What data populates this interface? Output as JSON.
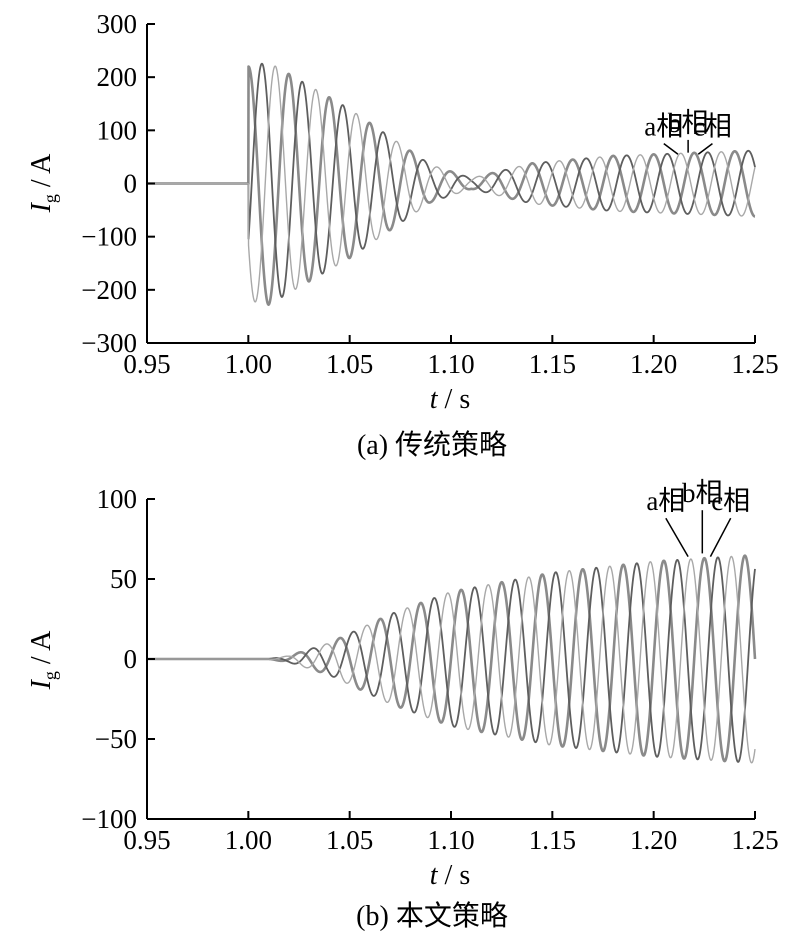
{
  "chart_data": [
    {
      "id": "a",
      "type": "line",
      "caption": "(a)  传统策略",
      "xlabel": {
        "italic": "t",
        "rest": " / s"
      },
      "ylabel": {
        "italic": "I",
        "sub": "g",
        "rest": " / A"
      },
      "xlim": [
        0.95,
        1.25
      ],
      "ylim": [
        -300,
        300
      ],
      "xticks": [
        0.95,
        1.0,
        1.05,
        1.1,
        1.15,
        1.2,
        1.25
      ],
      "xtick_labels": [
        "0.95",
        "1.00",
        "1.05",
        "1.10",
        "1.15",
        "1.20",
        "1.25"
      ],
      "yticks": [
        300,
        200,
        100,
        0,
        -100,
        -200,
        -300
      ],
      "ytick_labels": [
        "300",
        "200",
        "100",
        "0",
        "−100",
        "−200",
        "−300"
      ],
      "grid": false,
      "frequency_hz": 50,
      "series": [
        {
          "name": "a相",
          "color": "#8a8a8a",
          "phase_deg": 90,
          "width": 2.6
        },
        {
          "name": "b相",
          "color": "#5e5e5e",
          "phase_deg": -30,
          "width": 1.8
        },
        {
          "name": "c相",
          "color": "#a8a8a8",
          "phase_deg": -150,
          "width": 1.4
        }
      ],
      "envelope_points": [
        [
          0.95,
          0
        ],
        [
          1.0,
          0
        ],
        [
          1.0,
          220
        ],
        [
          1.01,
          228
        ],
        [
          1.05,
          140
        ],
        [
          1.09,
          35
        ],
        [
          1.11,
          10
        ],
        [
          1.14,
          38
        ],
        [
          1.18,
          52
        ],
        [
          1.25,
          62
        ]
      ],
      "labels": [
        {
          "text": "a相",
          "at": [
            1.205,
            75
          ],
          "to": [
            1.212,
            55
          ]
        },
        {
          "text": "b相",
          "at": [
            1.217,
            82
          ],
          "to": [
            1.217,
            58
          ]
        },
        {
          "text": "c相",
          "at": [
            1.229,
            75
          ],
          "to": [
            1.222,
            55
          ]
        }
      ]
    },
    {
      "id": "b",
      "type": "line",
      "caption": "(b)  本文策略",
      "xlabel": {
        "italic": "t",
        "rest": " / s"
      },
      "ylabel": {
        "italic": "I",
        "sub": "g",
        "rest": " / A"
      },
      "xlim": [
        0.95,
        1.25
      ],
      "ylim": [
        -100,
        100
      ],
      "xticks": [
        0.95,
        1.0,
        1.05,
        1.1,
        1.15,
        1.2,
        1.25
      ],
      "xtick_labels": [
        "0.95",
        "1.00",
        "1.05",
        "1.10",
        "1.15",
        "1.20",
        "1.25"
      ],
      "yticks": [
        100,
        50,
        0,
        -50,
        -100
      ],
      "ytick_labels": [
        "100",
        "50",
        "0",
        "−50",
        "−100"
      ],
      "grid": false,
      "frequency_hz": 50,
      "series": [
        {
          "name": "a相",
          "color": "#8a8a8a",
          "phase_deg": 0,
          "width": 2.6
        },
        {
          "name": "b相",
          "color": "#5e5e5e",
          "phase_deg": -120,
          "width": 1.8
        },
        {
          "name": "c相",
          "color": "#a8a8a8",
          "phase_deg": 120,
          "width": 1.4
        }
      ],
      "envelope_points": [
        [
          0.95,
          0
        ],
        [
          1.01,
          0
        ],
        [
          1.02,
          2
        ],
        [
          1.04,
          10
        ],
        [
          1.07,
          28
        ],
        [
          1.1,
          42
        ],
        [
          1.15,
          54
        ],
        [
          1.2,
          61
        ],
        [
          1.25,
          65
        ]
      ],
      "labels": [
        {
          "text": "a相",
          "at": [
            1.206,
            88
          ],
          "to": [
            1.217,
            64
          ]
        },
        {
          "text": "b相",
          "at": [
            1.224,
            93
          ],
          "to": [
            1.224,
            66
          ]
        },
        {
          "text": "c相",
          "at": [
            1.238,
            88
          ],
          "to": [
            1.228,
            64
          ]
        }
      ]
    }
  ]
}
